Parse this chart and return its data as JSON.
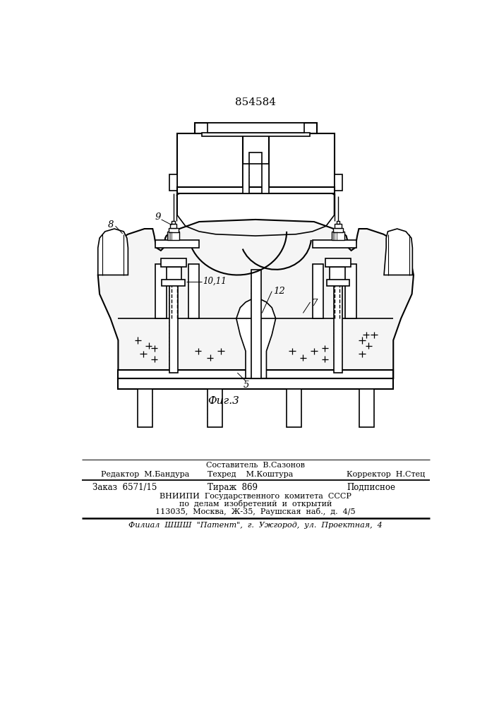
{
  "title": "854584",
  "fig_label": "Фиг.3",
  "background_color": "#ffffff",
  "line_color": "#000000",
  "footer": {
    "line1_center": "Составитель  В.Сазонов",
    "line2_left": "Редактор  М.Бандура",
    "line2_center": "Техред    М.Коштура",
    "line2_right": "Корректор  Н.Стец",
    "line3_left": "Заказ  6571/15",
    "line3_center": "Тираж  869",
    "line3_right": "Подписное",
    "line4": "ВНИИПИ  Государственного  комитета  СССР",
    "line5": "по  делам  изобретений  и  открытий",
    "line6": "113035,  Москва,  Ж-35,  Раушская  наб.,  д.  4/5",
    "line7": "Филиал  ШШШ  \"Патент\",  г.  Ужгород,  ул.  Проектная,  4"
  }
}
